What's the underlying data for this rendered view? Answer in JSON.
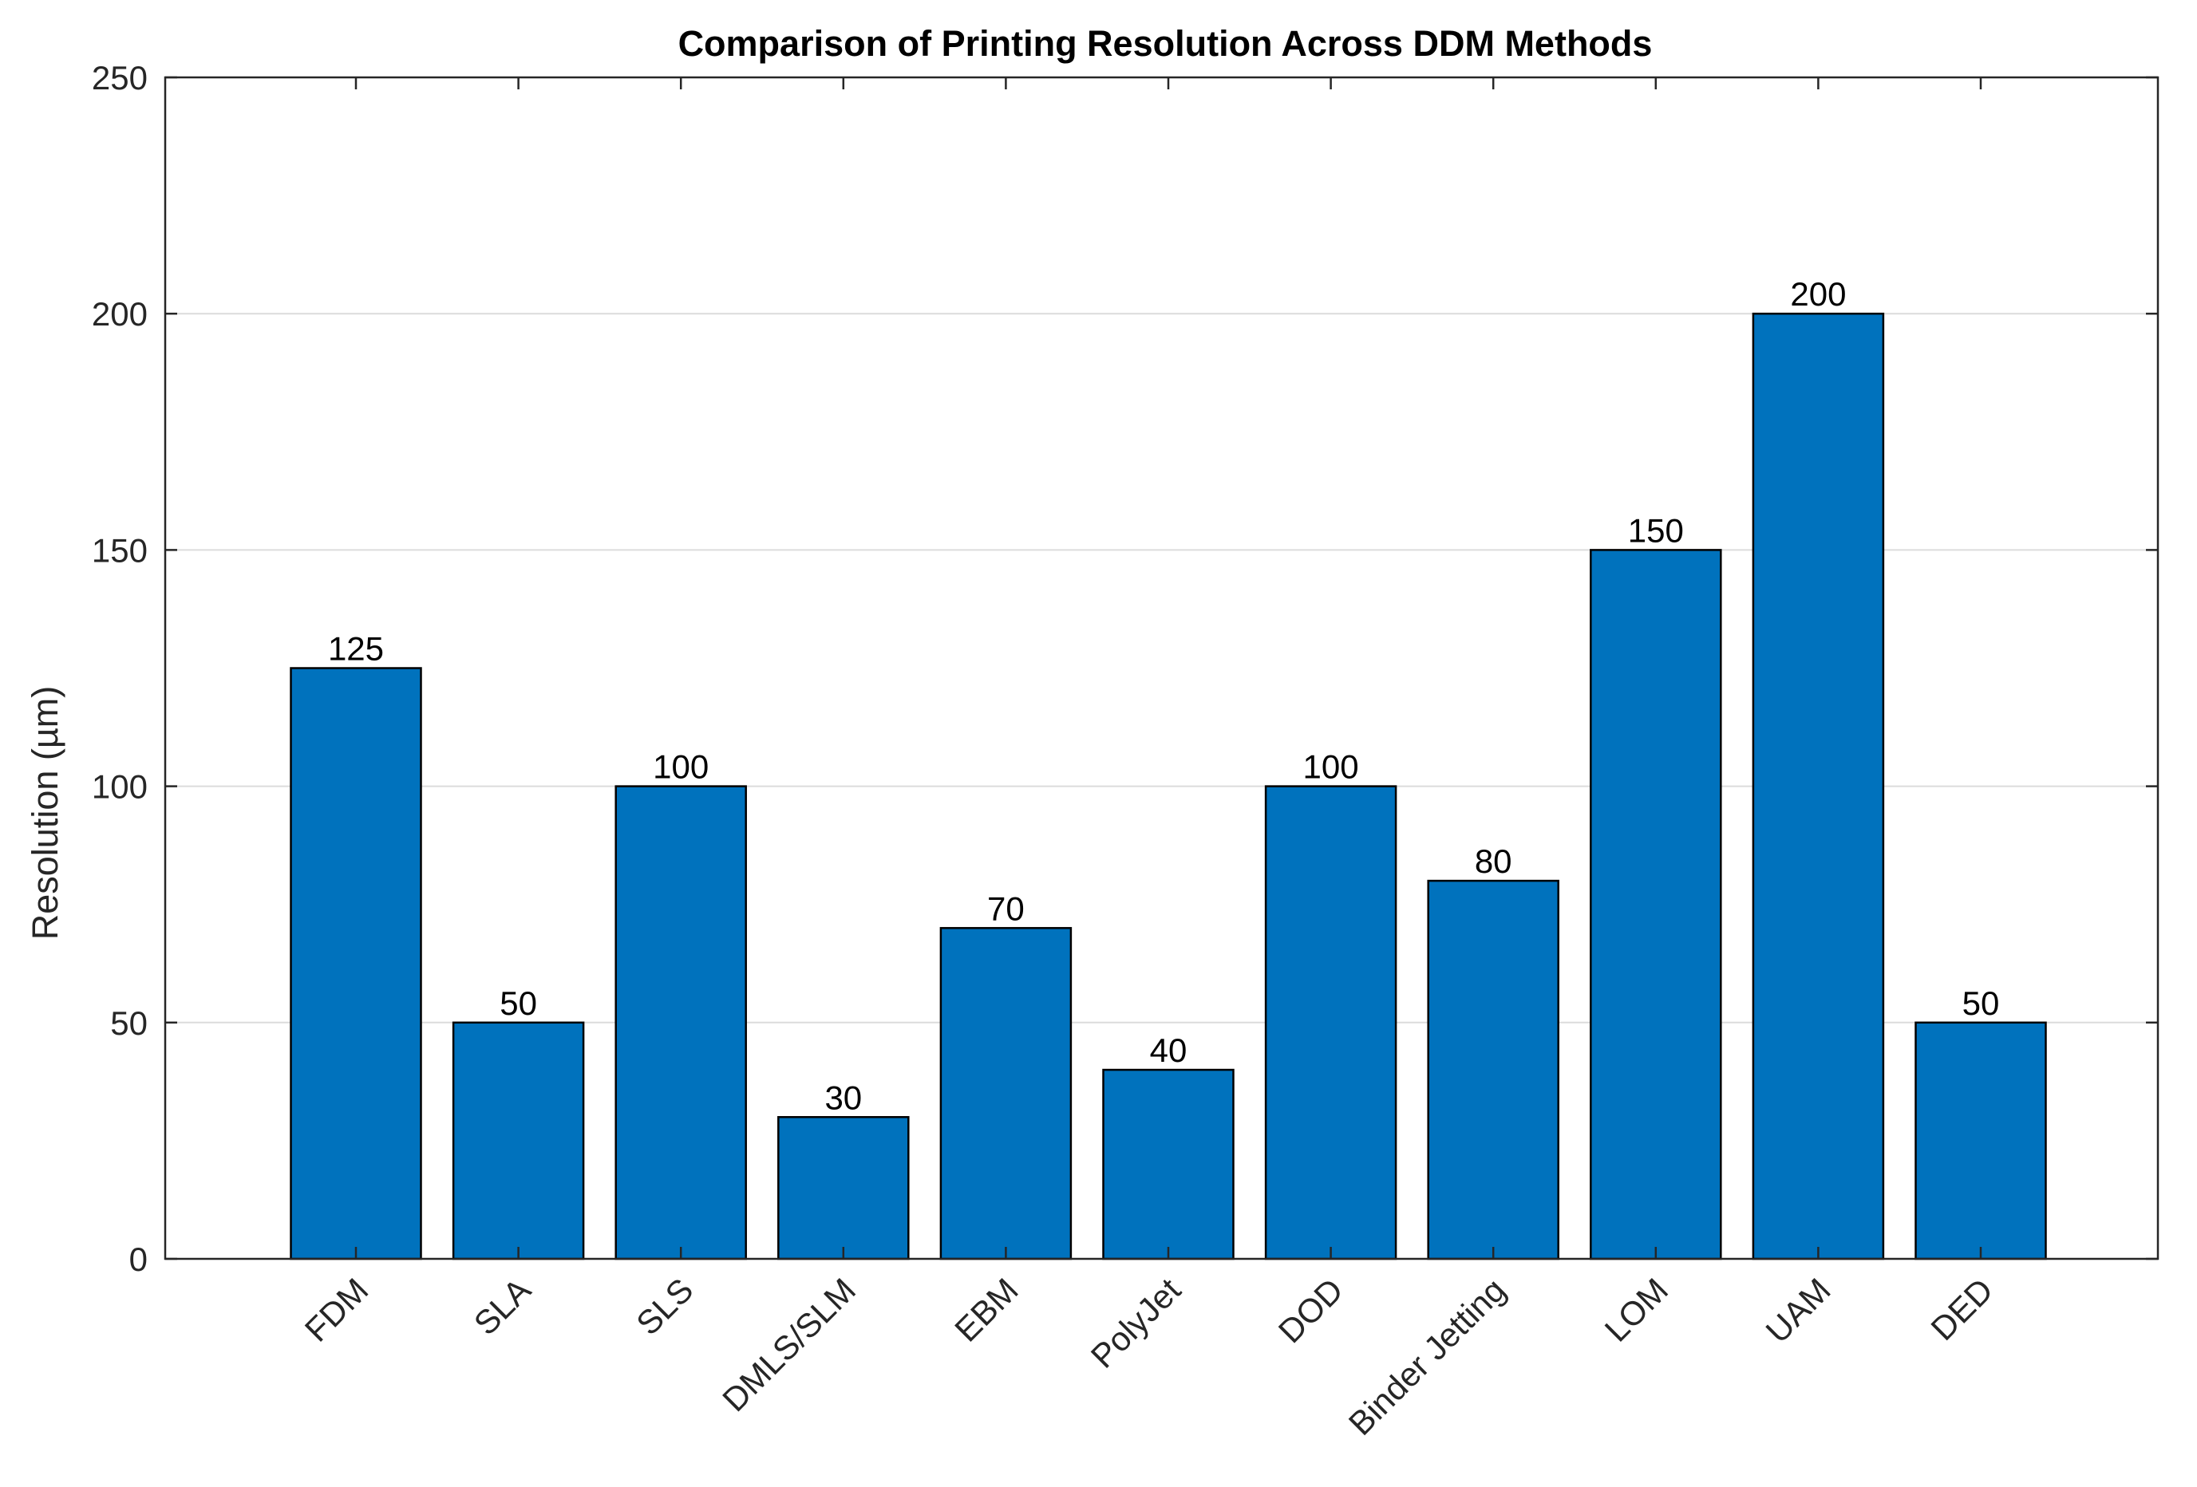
{
  "chart_data": {
    "type": "bar",
    "title": "Comparison of Printing Resolution Across DDM Methods",
    "xlabel": "",
    "ylabel": "Resolution (µm)",
    "ylim": [
      0,
      250
    ],
    "yticks": [
      0,
      50,
      100,
      150,
      200,
      250
    ],
    "grid": "horizontal",
    "categories": [
      "FDM",
      "SLA",
      "SLS",
      "DMLS/SLM",
      "EBM",
      "PolyJet",
      "DOD",
      "Binder Jetting",
      "LOM",
      "UAM",
      "DED"
    ],
    "values": [
      125,
      50,
      100,
      30,
      70,
      40,
      100,
      80,
      150,
      200,
      50
    ],
    "data_labels": [
      "125",
      "50",
      "100",
      "30",
      "70",
      "40",
      "100",
      "80",
      "150",
      "200",
      "50"
    ],
    "bar_color": "#0072BD",
    "bar_edge_color": "#000000",
    "grid_color": "#DCDCDC",
    "axis_color": "#262626"
  }
}
